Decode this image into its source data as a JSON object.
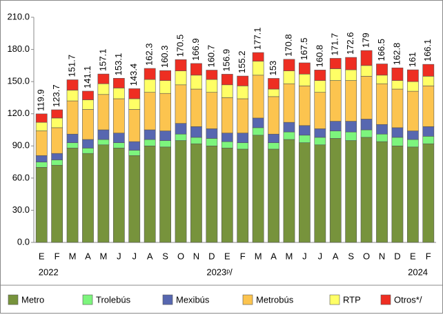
{
  "chart_data": {
    "type": "stacked_bar",
    "categories": [
      "E",
      "F",
      "M",
      "A",
      "M",
      "J",
      "J",
      "A",
      "S",
      "O",
      "N",
      "D",
      "E",
      "F",
      "M",
      "A",
      "M",
      "J",
      "J",
      "A",
      "S",
      "O",
      "N",
      "D",
      "E",
      "F"
    ],
    "year_labels": [
      "2022",
      "2023ᵖ/",
      "2024"
    ],
    "ylim": [
      0,
      210
    ],
    "yticks": [
      {
        "value": 0,
        "label": "0.0"
      },
      {
        "value": 30,
        "label": "30.0"
      },
      {
        "value": 60,
        "label": "60.0"
      },
      {
        "value": 90,
        "label": "90.0"
      },
      {
        "value": 120,
        "label": "120.0"
      },
      {
        "value": 150,
        "label": "150.0"
      },
      {
        "value": 180,
        "label": "180.0"
      },
      {
        "value": 210,
        "label": "210.0"
      }
    ],
    "series": [
      {
        "name": "Metro",
        "color": "#77933c",
        "values": [
          70,
          72,
          88,
          83,
          91,
          88,
          81,
          90,
          89,
          95,
          92,
          90,
          88,
          87,
          100,
          87,
          96,
          93,
          91,
          97,
          95,
          98,
          94,
          90,
          89,
          92
        ]
      },
      {
        "name": "Trolebús",
        "color": "#7df57d",
        "values": [
          5,
          5,
          5,
          5,
          5,
          5,
          5,
          6,
          6,
          6,
          6,
          7,
          6,
          6,
          7,
          6,
          7,
          7,
          7,
          7,
          8,
          7,
          7,
          8,
          7,
          7
        ]
      },
      {
        "name": "Mexibús",
        "color": "#5767b0",
        "values": [
          6,
          6,
          8,
          8,
          9,
          9,
          8,
          9,
          9,
          10,
          10,
          9,
          8,
          9,
          9,
          8,
          9,
          9,
          8,
          9,
          10,
          10,
          9,
          9,
          8,
          9
        ]
      },
      {
        "name": "Metrobús",
        "color": "#fcc44f",
        "values": [
          23,
          24,
          31,
          28,
          33,
          32,
          30,
          35,
          35,
          36,
          35,
          34,
          33,
          32,
          40,
          35,
          36,
          37,
          34,
          38,
          38,
          40,
          38,
          36,
          37,
          38
        ]
      },
      {
        "name": "RTP",
        "color": "#ffff66",
        "values": [
          8,
          9,
          10,
          9,
          10,
          10,
          10,
          12,
          12,
          13,
          13,
          12,
          12,
          12,
          13,
          7,
          12,
          11,
          11,
          11,
          10,
          10,
          8,
          8,
          9,
          9
        ]
      },
      {
        "name": "Otros*/",
        "color": "#ee2e22",
        "values": [
          7.9,
          7.7,
          9.7,
          8.1,
          9.1,
          9.1,
          9.4,
          10.3,
          9.3,
          10.5,
          10.9,
          8.7,
          9.9,
          9.2,
          8.1,
          10.0,
          10.8,
          10.5,
          9.8,
          9.7,
          11.6,
          14.0,
          10.5,
          11.8,
          11.0,
          11.1
        ]
      }
    ],
    "totals": [
      119.9,
      123.7,
      151.7,
      141.1,
      157.1,
      153.1,
      143.4,
      162.3,
      160.3,
      170.5,
      166.9,
      160.7,
      156.9,
      155.2,
      177.1,
      153.0,
      170.8,
      167.5,
      160.8,
      171.7,
      172.6,
      179.0,
      166.5,
      162.8,
      161.0,
      166.1
    ]
  }
}
